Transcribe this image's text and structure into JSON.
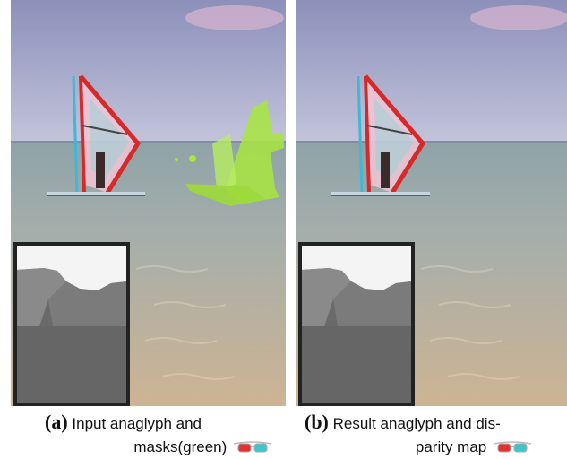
{
  "panels": [
    {
      "label": "(a)",
      "caption_line1": "Input anaglyph  and",
      "caption_line2": "masks(green)",
      "icon": "anaglyph-glasses-icon",
      "inset": "disparity-map"
    },
    {
      "label": "(b)",
      "caption_line1": "Result anaglyph  and dis-",
      "caption_line2": "parity map",
      "icon": "anaglyph-glasses-icon",
      "inset": "disparity-map"
    }
  ],
  "colors": {
    "sky_top": "#8a8fb8",
    "sky_bottom": "#b9bcd6",
    "sea": "#93a7a6",
    "sand": "#c9ad8d",
    "mask_green": "#a8e640",
    "glasses_red": "#e53030",
    "glasses_cyan": "#3cc6cc",
    "inset_border": "#222222"
  }
}
